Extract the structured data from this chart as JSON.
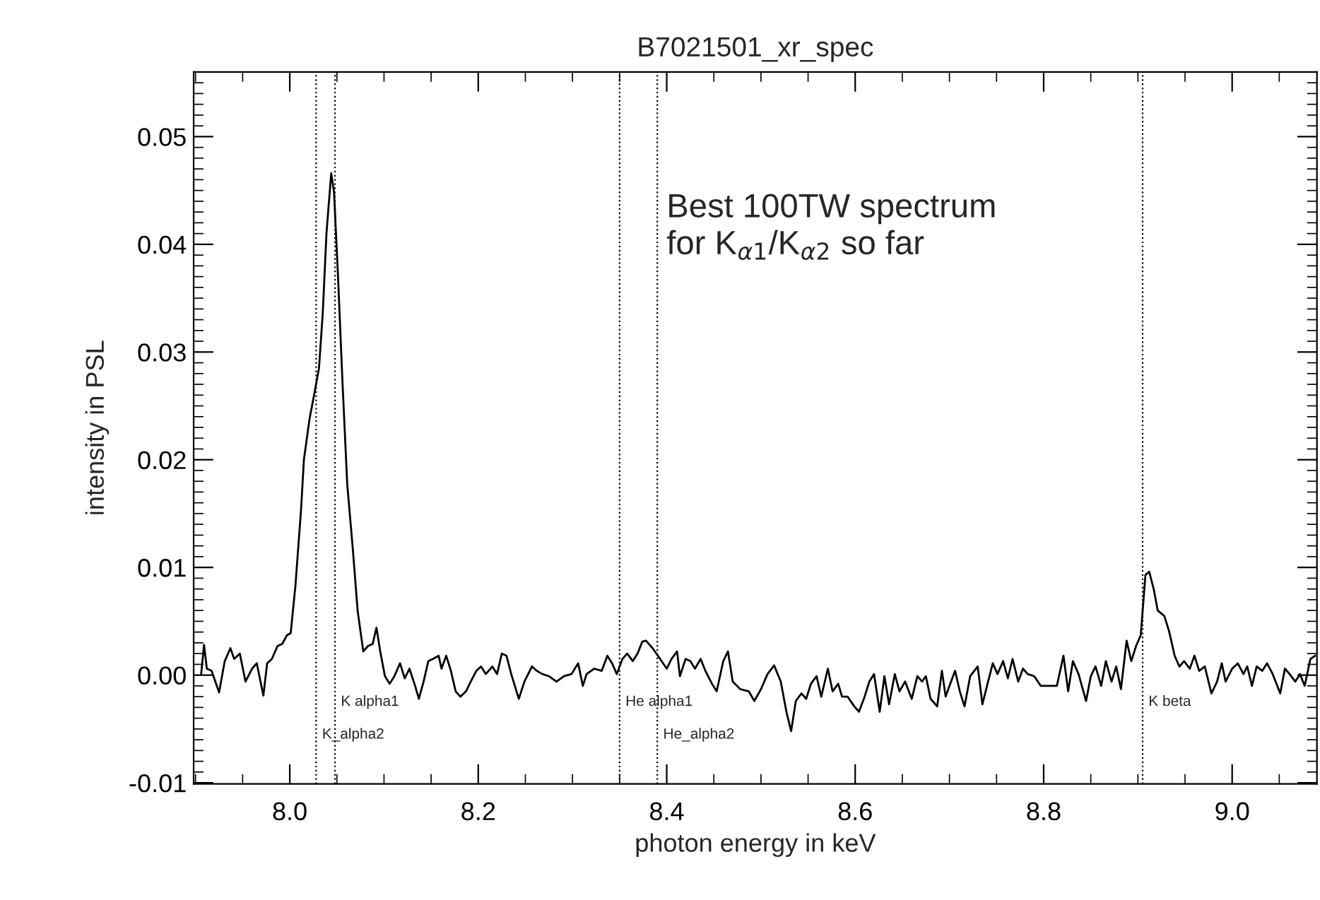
{
  "chart_data": {
    "type": "line",
    "title": "B7021501_xr_spec",
    "xlabel": "photon energy in keV",
    "ylabel": "intensity in PSL",
    "xlim": [
      7.898,
      9.09
    ],
    "xticks": [
      {
        "value": 8,
        "label": "8.0"
      },
      8.2,
      8.4,
      8.6,
      8.8,
      {
        "value": 9,
        "label": "9.0"
      }
    ],
    "ylim": [
      -0.0101,
      0.056
    ],
    "yticks": [
      {
        "value": -0.01,
        "label": "-0.01"
      },
      {
        "value": 0,
        "label": "0.00"
      },
      0.01,
      0.02,
      0.03,
      0.04,
      0.05
    ],
    "grid": false,
    "marker": "none",
    "line_style": "solid",
    "annotations": [
      "Best 100TW spectrum\nfor K$_{α1}$/K$_{α2}$ so far"
    ],
    "ref_lines": [
      {
        "axis": "x",
        "value": 8.048,
        "label": "K alpha1",
        "color": "#000000",
        "line_style": "dotted"
      },
      {
        "axis": "x",
        "value": 8.028,
        "label": "K_alpha2",
        "color": "#000000",
        "line_style": "dotted"
      },
      {
        "axis": "x",
        "value": 8.35,
        "label": "He alpha1",
        "color": "#000000",
        "line_style": "dotted"
      },
      {
        "axis": "x",
        "value": 8.39,
        "label": "He_alpha2",
        "color": "#000000",
        "line_style": "dotted"
      },
      {
        "axis": "x",
        "value": 8.905,
        "label": "K beta",
        "color": "#000000",
        "line_style": "dotted"
      }
    ],
    "series": [
      {
        "color": "#000000",
        "x": [
          7.906,
          7.909,
          7.912,
          7.917,
          7.925,
          7.931,
          7.937,
          7.941,
          7.947,
          7.953,
          7.96,
          7.965,
          7.972,
          7.976,
          7.981,
          7.987,
          7.992,
          7.997,
          8.001,
          8.006,
          8.012,
          8.015,
          8.021,
          8.026,
          8.031,
          8.035,
          8.039,
          8.044,
          8.047,
          8.051,
          8.056,
          8.061,
          8.067,
          8.072,
          8.078,
          8.083,
          8.088,
          8.092,
          8.096,
          8.101,
          8.106,
          8.111,
          8.117,
          8.122,
          8.127,
          8.133,
          8.137,
          8.142,
          8.147,
          8.152,
          8.158,
          8.161,
          8.166,
          8.171,
          8.176,
          8.181,
          8.187,
          8.192,
          8.198,
          8.203,
          8.208,
          8.215,
          8.22,
          8.225,
          8.23,
          8.235,
          8.243,
          8.249,
          8.257,
          8.262,
          8.268,
          8.275,
          8.283,
          8.291,
          8.299,
          8.306,
          8.311,
          8.315,
          8.323,
          8.331,
          8.337,
          8.342,
          8.347,
          8.353,
          8.358,
          8.364,
          8.369,
          8.374,
          8.378,
          8.385,
          8.393,
          8.4,
          8.405,
          8.411,
          8.414,
          8.42,
          8.425,
          8.43,
          8.436,
          8.441,
          8.448,
          8.453,
          8.46,
          8.465,
          8.47,
          8.478,
          8.487,
          8.493,
          8.5,
          8.507,
          8.514,
          8.521,
          8.527,
          8.532,
          8.537,
          8.543,
          8.548,
          8.553,
          8.559,
          8.564,
          8.571,
          8.576,
          8.582,
          8.586,
          8.592,
          8.599,
          8.604,
          8.61,
          8.615,
          8.62,
          8.626,
          8.631,
          8.636,
          8.642,
          8.647,
          8.653,
          8.66,
          8.666,
          8.671,
          8.675,
          8.68,
          8.687,
          8.692,
          8.696,
          8.7,
          8.706,
          8.711,
          8.716,
          8.722,
          8.73,
          8.735,
          8.741,
          8.746,
          8.751,
          8.757,
          8.762,
          8.767,
          8.773,
          8.778,
          8.783,
          8.79,
          8.797,
          8.807,
          8.814,
          8.821,
          8.826,
          8.831,
          8.837,
          8.845,
          8.85,
          8.855,
          8.861,
          8.866,
          8.872,
          8.877,
          8.882,
          8.888,
          8.893,
          8.898,
          8.903,
          8.908,
          8.912,
          8.917,
          8.921,
          8.928,
          8.933,
          8.939,
          8.944,
          8.949,
          8.955,
          8.96,
          8.965,
          8.971,
          8.978,
          8.984,
          8.989,
          8.993,
          9.0,
          9.006,
          9.012,
          9.016,
          9.021,
          9.026,
          9.032,
          9.037,
          9.043,
          9.051,
          9.056,
          9.061,
          9.067,
          9.072,
          9.077,
          9.083,
          9.088
        ],
        "values": [
          0.0001,
          0.0028,
          0.0006,
          0.0004,
          -0.0016,
          0.0013,
          0.0025,
          0.0015,
          0.002,
          -0.0006,
          0.0006,
          0.0011,
          -0.0019,
          0.0011,
          0.0015,
          0.0027,
          0.0029,
          0.0037,
          0.0039,
          0.0083,
          0.0154,
          0.02,
          0.0238,
          0.0261,
          0.0285,
          0.0336,
          0.0411,
          0.0466,
          0.0448,
          0.0374,
          0.0271,
          0.0177,
          0.0116,
          0.006,
          0.0022,
          0.0027,
          0.0029,
          0.0044,
          0.0022,
          -0.0001,
          -0.0008,
          -0.0001,
          0.0011,
          -0.0003,
          0.0006,
          -0.001,
          -0.0022,
          -0.0006,
          0.0013,
          0.0015,
          0.0018,
          0.0006,
          0.0018,
          0.0004,
          -0.0015,
          -0.002,
          -0.0015,
          -0.0006,
          0.0004,
          0.0008,
          0.0001,
          0.0008,
          0.0001,
          0.002,
          0.0018,
          0.0001,
          -0.0022,
          -0.0006,
          0.0008,
          0.0004,
          0.0001,
          -0.0001,
          -0.0006,
          -0.0001,
          0.0001,
          0.0011,
          -0.001,
          0.0001,
          0.0006,
          0.0004,
          0.0018,
          0.0011,
          0.0001,
          0.0015,
          0.002,
          0.0013,
          0.002,
          0.0031,
          0.0032,
          0.0025,
          0.0015,
          0.0006,
          0.0015,
          0.0022,
          -0.0001,
          0.0015,
          0.0013,
          0.0006,
          0.0015,
          0.0004,
          -0.0008,
          -0.0015,
          0.0013,
          0.0022,
          -0.0006,
          -0.0013,
          -0.0015,
          -0.0024,
          -0.0013,
          0.0001,
          0.0009,
          -0.0006,
          -0.0034,
          -0.0052,
          -0.0024,
          -0.0017,
          -0.0022,
          -0.0008,
          -0.0001,
          -0.002,
          0.0006,
          -0.0015,
          -0.0008,
          -0.002,
          -0.002,
          -0.0029,
          -0.0034,
          -0.002,
          -0.0006,
          0.0001,
          -0.0034,
          -0.0001,
          -0.0027,
          0.0001,
          -0.0015,
          -0.0006,
          -0.0022,
          -0.0001,
          -0.0006,
          -0.0001,
          -0.0022,
          -0.0029,
          0.0004,
          -0.002,
          -0.001,
          0.0004,
          -0.0015,
          -0.0029,
          -0.0001,
          0.0008,
          -0.0027,
          -0.0006,
          0.0011,
          0.0001,
          0.0013,
          -0.0003,
          0.0015,
          -0.0006,
          0.0006,
          0.0001,
          -0.0001,
          -0.001,
          -0.001,
          -0.001,
          0.0018,
          -0.0015,
          0.0013,
          0.0001,
          -0.0024,
          -0.0001,
          0.0008,
          -0.001,
          0.0013,
          -0.0006,
          0.0008,
          -0.0013,
          0.0032,
          0.0013,
          0.0027,
          0.0037,
          0.0093,
          0.0096,
          0.0079,
          0.006,
          0.0055,
          0.0041,
          0.0018,
          0.0008,
          0.0013,
          0.0006,
          0.0018,
          0.0004,
          0.0008,
          -0.0017,
          -0.0006,
          0.0011,
          -0.0006,
          0.0006,
          0.0011,
          0.0001,
          0.0008,
          -0.001,
          0.0008,
          0.0004,
          0.0011,
          0.0001,
          -0.0017,
          0.0006,
          0.0001,
          -0.0006,
          0.0001,
          -0.001,
          0.0015,
          0.0018
        ]
      }
    ]
  }
}
